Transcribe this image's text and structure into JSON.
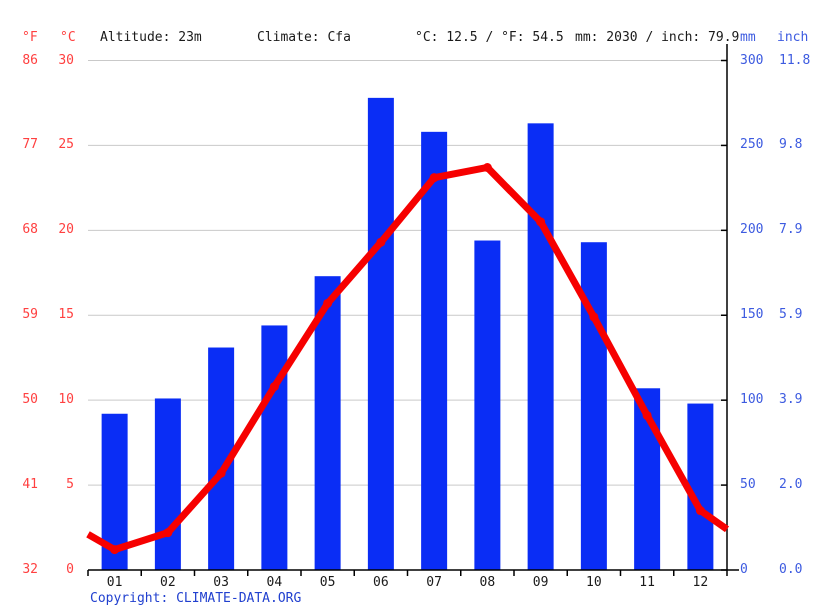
{
  "header": {
    "unit_f": "°F",
    "unit_c": "°C",
    "altitude": "Altitude: 23m",
    "climate": "Climate: Cfa",
    "temp_summary": "°C: 12.5 / °F: 54.5",
    "precip_summary": "mm: 2030 / inch: 79.9",
    "unit_mm": "mm",
    "unit_inch": "inch"
  },
  "footer": {
    "copyright": "Copyright: CLIMATE-DATA.ORG"
  },
  "colors": {
    "bar_blue": "#0A2DF5",
    "line_red": "#F60000",
    "axis_label_red": "#FF4040",
    "axis_label_blue": "#3D5BE0",
    "copyright_blue": "#2140CF",
    "grid_gray": "#C9C9C9",
    "axis_black": "#000000",
    "text_black": "#1A1A1A"
  },
  "chart_data": {
    "type": "bar+line",
    "title": "Climate graph (monthly precipitation bars and mean temperature line)",
    "categories": [
      "01",
      "02",
      "03",
      "04",
      "05",
      "06",
      "07",
      "08",
      "09",
      "10",
      "11",
      "12"
    ],
    "series": [
      {
        "name": "precipitation_mm",
        "type": "bar",
        "values": [
          92,
          101,
          131,
          144,
          173,
          278,
          258,
          194,
          263,
          193,
          107,
          98
        ]
      },
      {
        "name": "temperature_c",
        "type": "line",
        "values": [
          1.2,
          2.2,
          5.7,
          10.8,
          15.7,
          19.3,
          23.1,
          23.7,
          20.5,
          14.9,
          9.1,
          3.5
        ],
        "edge_values": {
          "left": 2.1,
          "right": 2.4
        }
      }
    ],
    "axes": {
      "left_f": {
        "label": "°F",
        "ticks": [
          "86",
          "77",
          "68",
          "59",
          "50",
          "41",
          "32"
        ]
      },
      "left_c": {
        "label": "°C",
        "ticks": [
          "30",
          "25",
          "20",
          "15",
          "10",
          "5",
          "0"
        ],
        "range": [
          0,
          30
        ]
      },
      "right_mm": {
        "label": "mm",
        "ticks": [
          "300",
          "250",
          "200",
          "150",
          "100",
          "50",
          "0"
        ],
        "range": [
          0,
          300
        ]
      },
      "right_inch": {
        "label": "inch",
        "ticks": [
          "11.8",
          "9.8",
          "7.9",
          "5.9",
          "3.9",
          "2.0",
          "0.0"
        ]
      }
    },
    "gridline_values_mm": [
      300,
      250,
      200,
      150,
      100,
      50,
      0
    ],
    "grid": true,
    "legend": "none"
  }
}
